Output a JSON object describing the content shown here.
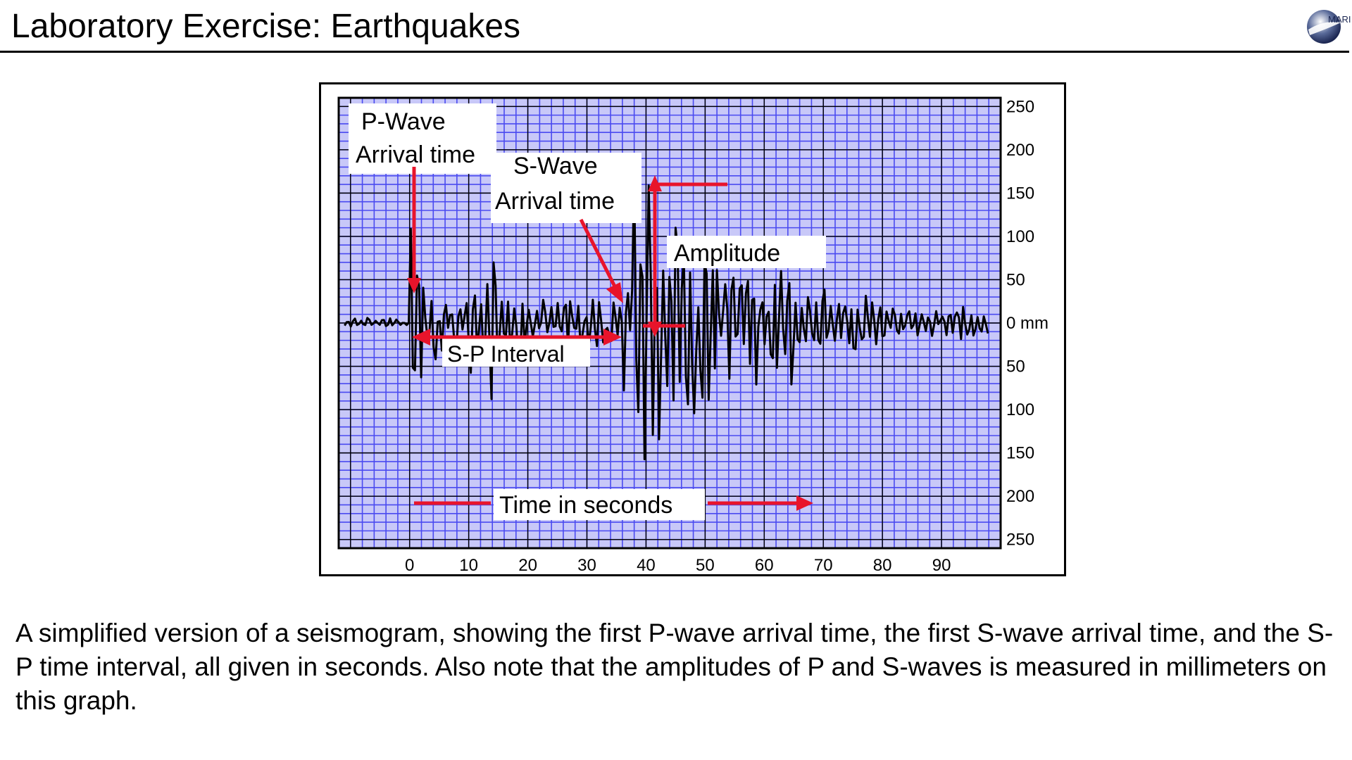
{
  "slide": {
    "title": "Laboratory Exercise: Earthquakes",
    "logo_text": "MARI"
  },
  "figure": {
    "labels": {
      "p_wave_line1": "P-Wave",
      "p_wave_line2": "Arrival time",
      "s_wave_line1": "S-Wave",
      "s_wave_line2": "Arrival time",
      "amplitude": "Amplitude",
      "sp_interval": "S-P Interval",
      "time_axis": "Time in seconds"
    },
    "chart_data": {
      "type": "line",
      "x_ticks": [
        "0",
        "10",
        "20",
        "30",
        "40",
        "50",
        "60",
        "70",
        "80",
        "90"
      ],
      "y_ticks": [
        "250",
        "200",
        "150",
        "100",
        "50",
        "0 mm",
        "50",
        "100",
        "150",
        "200",
        "250"
      ],
      "x_unit": "seconds",
      "y_unit": "mm",
      "xlim": [
        -12,
        100
      ],
      "ylim": [
        -260,
        260
      ],
      "p_wave_arrival": 0,
      "s_wave_arrival": 36,
      "grid": true,
      "colors": {
        "grid_minor": "#4a4af0",
        "grid_major": "#000000",
        "background": "#c8c8f8",
        "annotation": "#e8142b",
        "trace": "#000000"
      }
    }
  },
  "caption": "A simplified version of a seismogram, showing the first P-wave arrival time, the first S-wave arrival time, and the S-P time interval, all given in seconds. Also note that the amplitudes of P and S-waves is measured in millimeters on this graph."
}
